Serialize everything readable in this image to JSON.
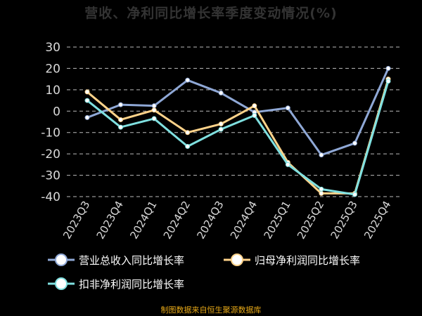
{
  "title": "营收、净利同比增长率季度变动情况(%)",
  "footer": "制图数据来自恒生聚源数据库",
  "chart_data": {
    "type": "line",
    "categories": [
      "2023Q3",
      "2023Q4",
      "2024Q1",
      "2024Q2",
      "2024Q3",
      "2024Q4",
      "2025Q1",
      "2025Q2",
      "2025Q3",
      "2025Q4"
    ],
    "ylim": [
      -40,
      30
    ],
    "yticks": [
      30,
      20,
      10,
      0,
      -10,
      -20,
      -30,
      -40
    ],
    "grid": true,
    "legend_position": "bottom",
    "series": [
      {
        "name": "营业总收入同比增长率",
        "color": "#8fa8d6",
        "values": [
          -3,
          3,
          2.5,
          14.5,
          8.5,
          -0.5,
          1.5,
          -20.5,
          -15,
          20
        ]
      },
      {
        "name": "归母净利润同比增长率",
        "color": "#ffd38a",
        "values": [
          9,
          -4,
          0.5,
          -10,
          -6,
          2.5,
          -24,
          -38.5,
          -38.5,
          15
        ]
      },
      {
        "name": "扣非净利润同比增长率",
        "color": "#7fe0e0",
        "values": [
          5,
          -7.5,
          -3.5,
          -16.5,
          -8.5,
          -2,
          -25,
          -36.5,
          -39,
          14
        ]
      }
    ]
  }
}
